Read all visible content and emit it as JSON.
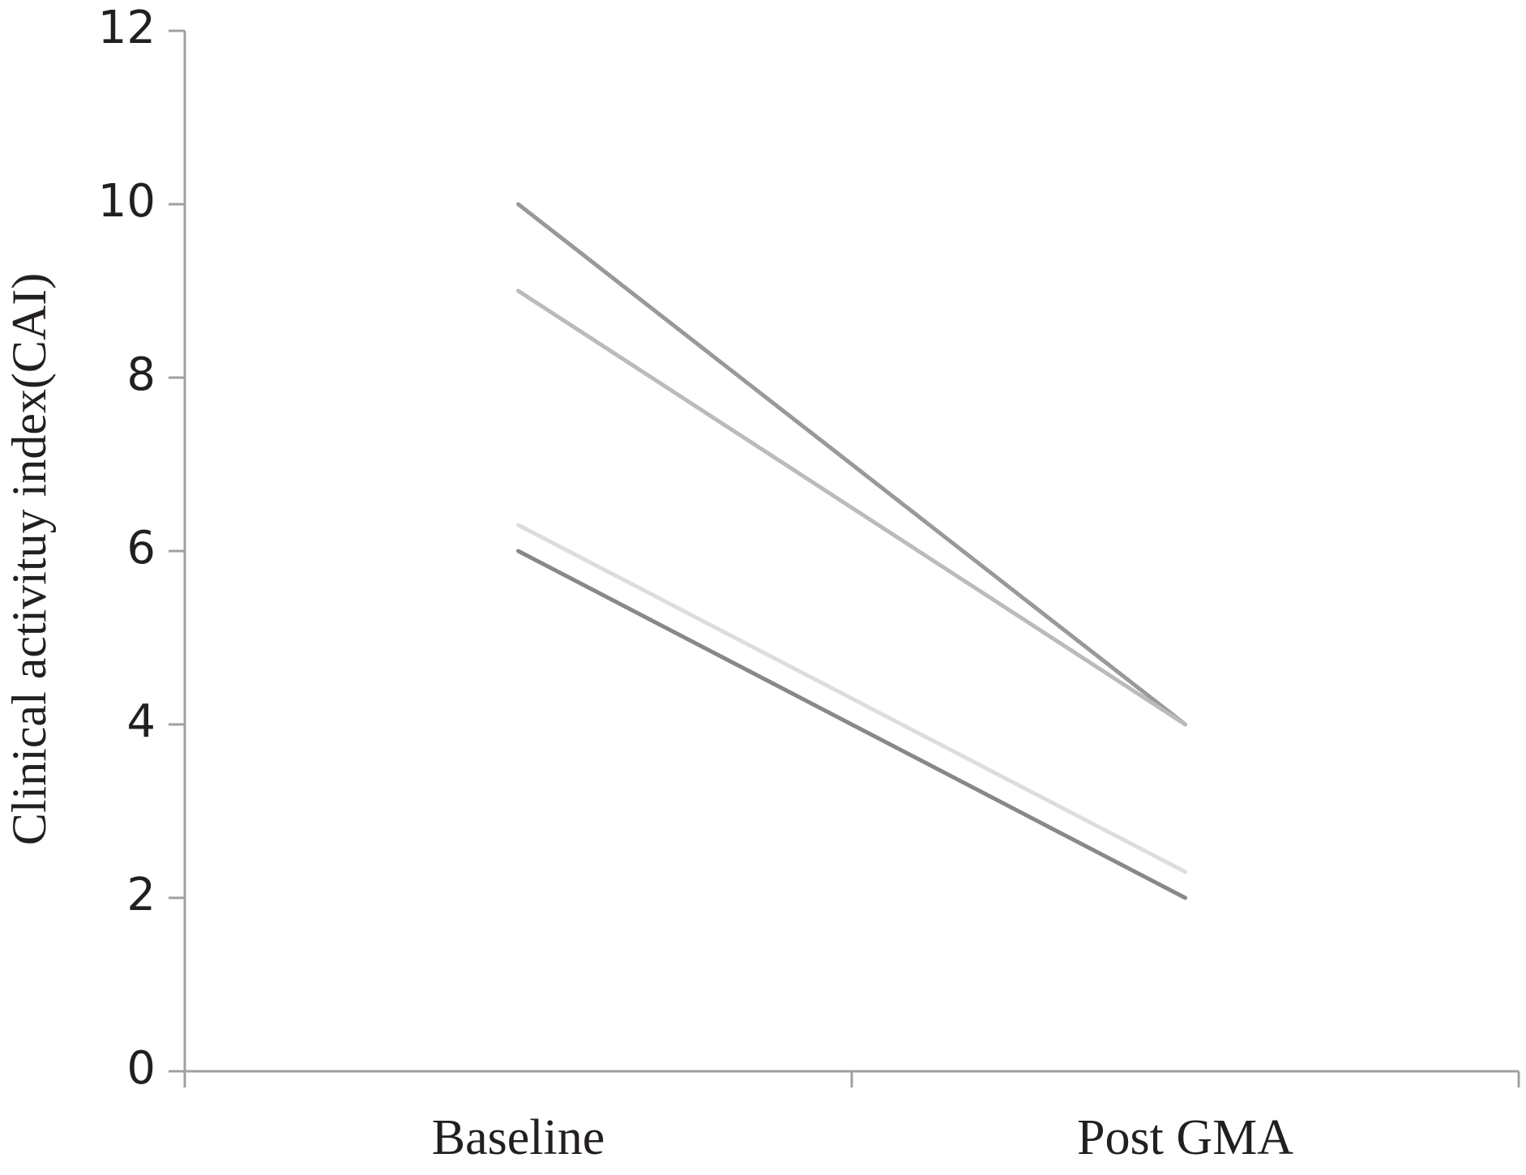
{
  "chart_data": {
    "type": "line",
    "y_label": "Clinical activituy index(CAI)",
    "categories": [
      "Baseline",
      "Post GMA"
    ],
    "series": [
      {
        "color": "#999999",
        "values": [
          10,
          4
        ]
      },
      {
        "color": "#bbbbbb",
        "values": [
          9,
          4
        ]
      },
      {
        "color": "#dddddd",
        "values": [
          6.3,
          2.3
        ]
      },
      {
        "color": "#888888",
        "values": [
          6,
          2
        ]
      }
    ],
    "ylim": [
      0,
      12
    ],
    "yticks": [
      0,
      2,
      4,
      6,
      8,
      10,
      12
    ]
  }
}
